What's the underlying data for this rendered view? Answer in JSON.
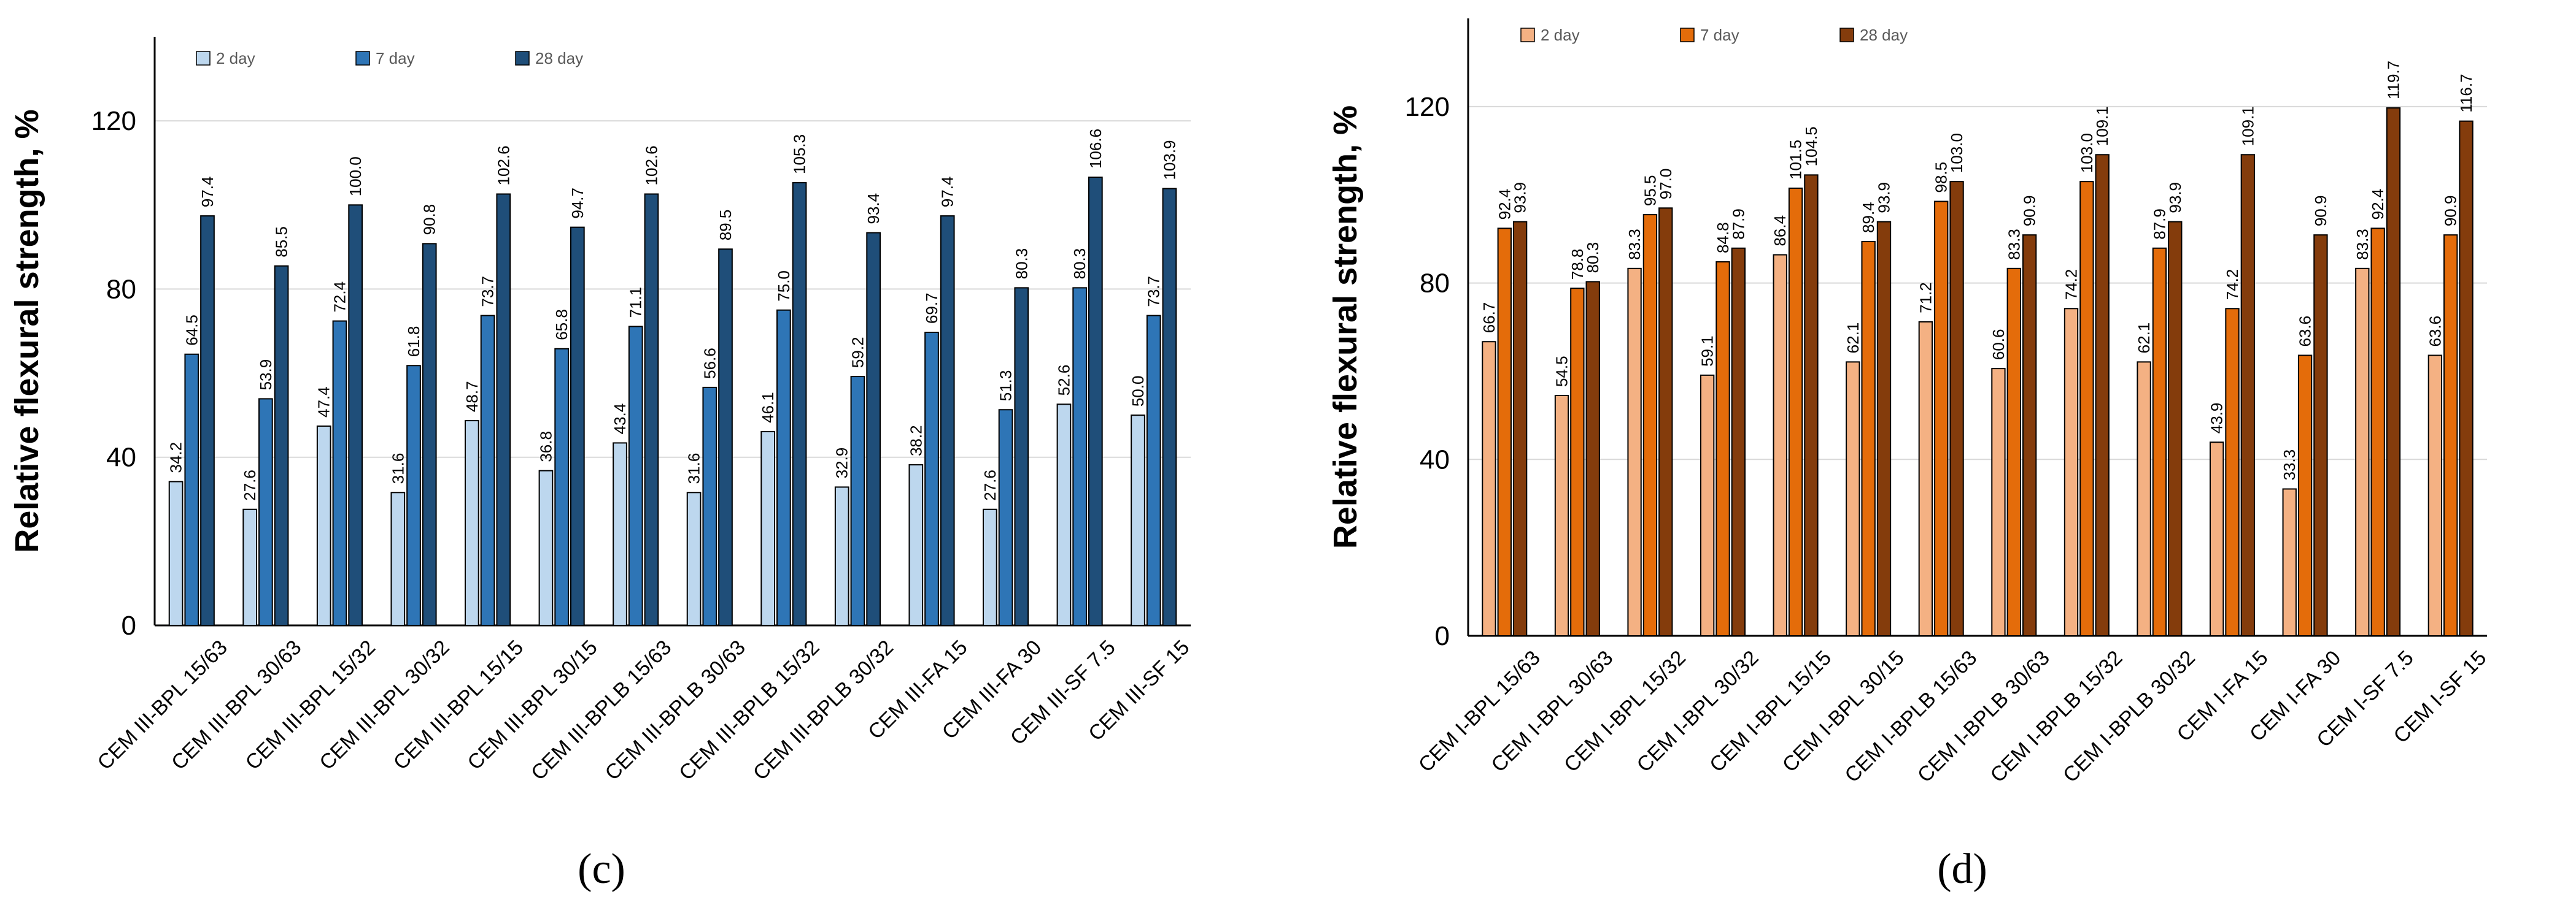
{
  "chart_data": [
    {
      "type": "bar",
      "panel_label": "(c)",
      "ylabel": "Relative flexural strength, %",
      "ylim": [
        0,
        140
      ],
      "yticks": [
        0,
        40,
        80,
        120
      ],
      "legend_position": "top-left",
      "categories": [
        "CEM III-BPL 15/63",
        "CEM III-BPL 30/63",
        "CEM III-BPL 15/32",
        "CEM III-BPL 30/32",
        "CEM III-BPL 15/15",
        "CEM III-BPL 30/15",
        "CEM III-BPLB 15/63",
        "CEM III-BPLB 30/63",
        "CEM III-BPLB 15/32",
        "CEM III-BPLB 30/32",
        "CEM III-FA 15",
        "CEM III-FA 30",
        "CEM III-SF 7.5",
        "CEM III-SF 15"
      ],
      "series": [
        {
          "name": "2 day",
          "color": "#bdd7ee",
          "values": [
            34.2,
            27.6,
            47.4,
            31.6,
            48.7,
            36.8,
            43.4,
            31.6,
            46.1,
            32.9,
            38.2,
            27.6,
            52.6,
            50.0
          ]
        },
        {
          "name": "7 day",
          "color": "#2e75b6",
          "values": [
            64.5,
            53.9,
            72.4,
            61.8,
            73.7,
            65.8,
            71.1,
            56.6,
            75.0,
            59.2,
            69.7,
            51.3,
            80.3,
            73.7
          ]
        },
        {
          "name": "28 day",
          "color": "#1f4e79",
          "values": [
            97.4,
            85.5,
            100.0,
            90.8,
            102.6,
            94.7,
            102.6,
            89.5,
            105.3,
            93.4,
            97.4,
            80.3,
            106.6,
            103.9
          ]
        }
      ]
    },
    {
      "type": "bar",
      "panel_label": "(d)",
      "ylabel": "Relative flexural strength, %",
      "ylim": [
        0,
        140
      ],
      "yticks": [
        0,
        40,
        80,
        120
      ],
      "legend_position": "top-left",
      "categories": [
        "CEM I-BPL 15/63",
        "CEM I-BPL 30/63",
        "CEM I-BPL 15/32",
        "CEM I-BPL 30/32",
        "CEM I-BPL 15/15",
        "CEM I-BPL 30/15",
        "CEM I-BPLB 15/63",
        "CEM I-BPLB 30/63",
        "CEM I-BPLB 15/32",
        "CEM I-BPLB 30/32",
        "CEM I-FA 15",
        "CEM I-FA 30",
        "CEM I-SF 7.5",
        "CEM I-SF 15"
      ],
      "series": [
        {
          "name": "2 day",
          "color": "#f4b183",
          "values": [
            66.7,
            54.5,
            83.3,
            59.1,
            86.4,
            62.1,
            71.2,
            60.6,
            74.2,
            62.1,
            43.9,
            33.3,
            83.3,
            63.6
          ]
        },
        {
          "name": "7 day",
          "color": "#e46c0a",
          "values": [
            92.4,
            78.8,
            95.5,
            84.8,
            101.5,
            89.4,
            98.5,
            83.3,
            103.0,
            87.9,
            74.2,
            63.6,
            92.4,
            90.9
          ]
        },
        {
          "name": "28 day",
          "color": "#843c0c",
          "values": [
            93.9,
            80.3,
            97.0,
            87.9,
            104.5,
            93.9,
            103.0,
            90.9,
            109.1,
            93.9,
            109.1,
            90.9,
            119.7,
            116.7
          ]
        }
      ]
    }
  ]
}
